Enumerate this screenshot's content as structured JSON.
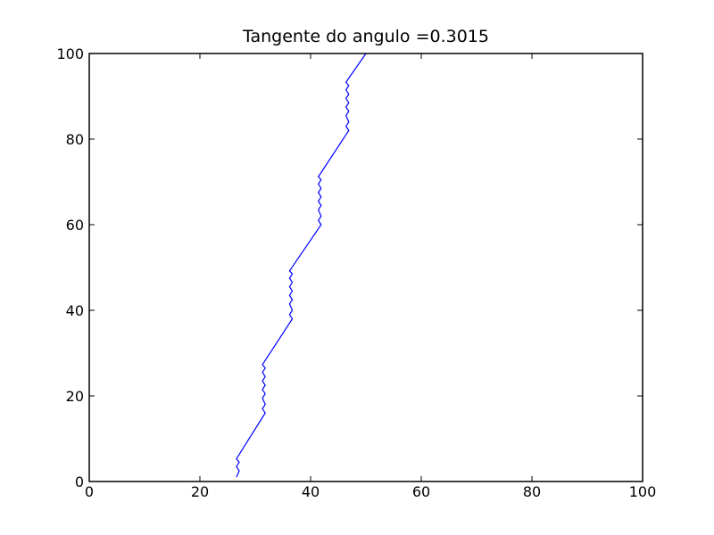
{
  "chart_data": {
    "type": "line",
    "title": "Tangente do angulo =0.3015",
    "xlabel": "",
    "ylabel": "",
    "xlim": [
      0,
      100
    ],
    "ylim": [
      0,
      100
    ],
    "xticks": [
      0,
      20,
      40,
      60,
      80,
      100
    ],
    "yticks": [
      0,
      20,
      40,
      60,
      80,
      100
    ],
    "grid": false,
    "series": [
      {
        "color": "#0000ff",
        "x": [
          26.6,
          27.1,
          26.6,
          27.1,
          26.6,
          31.8,
          31.3,
          31.8,
          31.3,
          31.8,
          31.3,
          31.8,
          31.3,
          31.8,
          31.3,
          31.8,
          31.3,
          36.7,
          36.2,
          36.7,
          36.2,
          36.7,
          36.2,
          36.7,
          36.2,
          36.7,
          36.2,
          36.7,
          36.2,
          41.9,
          41.4,
          41.9,
          41.4,
          41.9,
          41.4,
          41.9,
          41.4,
          41.9,
          41.4,
          41.9,
          41.4,
          46.9,
          46.4,
          46.9,
          46.4,
          46.9,
          46.4,
          46.9,
          46.4,
          46.9,
          46.4,
          46.9,
          46.4,
          50.0
        ],
        "y": [
          1.0,
          2.5,
          3.5,
          4.5,
          5.3,
          16.0,
          17.0,
          18.0,
          19.5,
          20.5,
          21.5,
          22.5,
          23.5,
          24.5,
          25.5,
          26.5,
          27.3,
          38.0,
          39.0,
          40.0,
          41.5,
          42.5,
          43.5,
          44.5,
          45.5,
          46.5,
          47.5,
          48.5,
          49.2,
          60.0,
          61.0,
          62.0,
          63.5,
          64.5,
          65.5,
          66.5,
          67.5,
          68.5,
          69.5,
          70.5,
          71.2,
          82.0,
          83.0,
          84.0,
          85.5,
          86.5,
          87.5,
          88.5,
          89.5,
          90.5,
          91.5,
          92.5,
          93.3,
          100.0
        ]
      }
    ]
  }
}
